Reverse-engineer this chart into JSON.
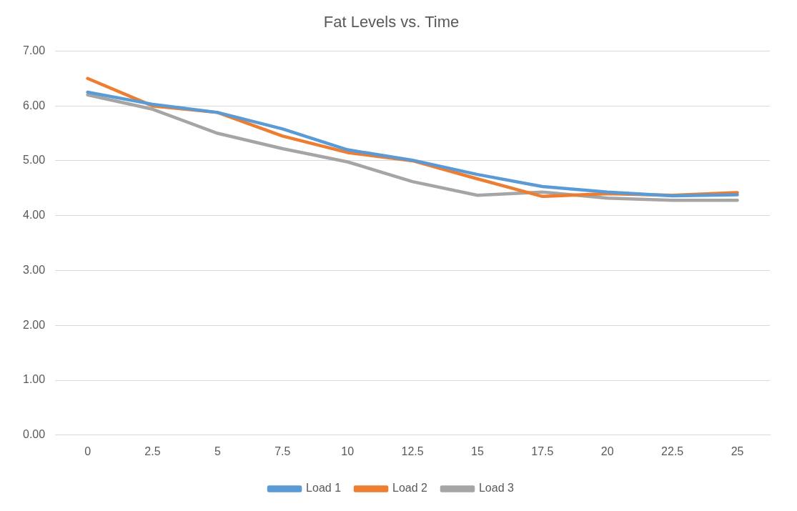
{
  "chart_data": {
    "type": "line",
    "title": "Fat Levels vs. Time",
    "categories": [
      "0",
      "2.5",
      "5",
      "7.5",
      "10",
      "12.5",
      "15",
      "17.5",
      "20",
      "22.5",
      "25"
    ],
    "series": [
      {
        "name": "Load 1",
        "color": "#5b9bd5",
        "values": [
          6.25,
          6.03,
          5.88,
          5.58,
          5.2,
          5.01,
          4.75,
          4.53,
          4.43,
          4.36,
          4.38
        ]
      },
      {
        "name": "Load 2",
        "color": "#ed7d31",
        "values": [
          6.5,
          6.0,
          5.88,
          5.45,
          5.15,
          5.0,
          4.67,
          4.35,
          4.4,
          4.37,
          4.42
        ]
      },
      {
        "name": "Load 3",
        "color": "#a5a5a5",
        "values": [
          6.2,
          5.94,
          5.5,
          5.22,
          4.98,
          4.62,
          4.37,
          4.43,
          4.32,
          4.28,
          4.28
        ]
      }
    ],
    "ylim": [
      0,
      7
    ],
    "yticks": [
      {
        "value": 0,
        "label": "0.00"
      },
      {
        "value": 1,
        "label": "1.00"
      },
      {
        "value": 2,
        "label": "2.00"
      },
      {
        "value": 3,
        "label": "3.00"
      },
      {
        "value": 4,
        "label": "4.00"
      },
      {
        "value": 5,
        "label": "5.00"
      },
      {
        "value": 6,
        "label": "6.00"
      },
      {
        "value": 7,
        "label": "7.00"
      }
    ],
    "grid": "y",
    "legend": "bottom",
    "marker": "none",
    "line_style": "solid"
  }
}
